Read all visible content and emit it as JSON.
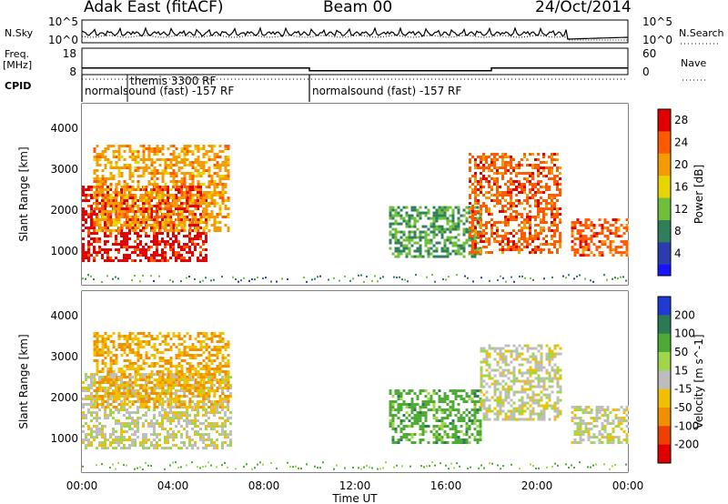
{
  "header": {
    "radar": "Adak East (fitACF)",
    "beam": "Beam 00",
    "date": "24/Oct/2014"
  },
  "left_labels": {
    "nsky": "N.Sky",
    "freq": "Freq.",
    "freq_unit": "[MHz]",
    "cpid": "CPID"
  },
  "right_labels": {
    "nsearch": "N.Search",
    "nave": "Nave"
  },
  "chart_data": [
    {
      "id": "noise",
      "type": "line",
      "left_axis": {
        "label": "N.Sky",
        "ticks": [
          "10^5",
          "10^0"
        ]
      },
      "right_axis": {
        "label": "N.Search",
        "ticks": [
          "10^5",
          "10^0"
        ]
      },
      "series": [
        {
          "name": "N.Sky",
          "style": "solid"
        },
        {
          "name": "N.Search",
          "style": "dotted"
        }
      ]
    },
    {
      "id": "frequency",
      "type": "line",
      "left_axis": {
        "label": "Freq. [MHz]",
        "ticks": [
          "18",
          "8"
        ],
        "range": [
          8,
          18
        ]
      },
      "right_axis": {
        "label": "Nave",
        "ticks": [
          "60",
          "0"
        ],
        "range": [
          0,
          60
        ]
      },
      "series": [
        {
          "name": "Freq.",
          "style": "solid",
          "x": [
            "00:00",
            "10:00",
            "10:00",
            "18:00",
            "18:00",
            "24:00"
          ],
          "values": [
            10.5,
            10.5,
            9.5,
            9.5,
            10.5,
            10.5
          ]
        },
        {
          "name": "Nave",
          "style": "dotted",
          "x": [
            "00:00",
            "24:00"
          ],
          "values": [
            8,
            8
          ]
        }
      ]
    },
    {
      "id": "cpid",
      "type": "table",
      "segments": [
        {
          "start": "00:00",
          "end": "10:00",
          "label": "normalsound (fast) -157 RF"
        },
        {
          "start": "10:00",
          "end": "24:00",
          "label": "normalsound (fast) -157 RF"
        }
      ],
      "annotation": {
        "time": "02:00",
        "label": "themis 3300 RF"
      }
    },
    {
      "id": "power",
      "type": "heatmap",
      "ylabel": "Slant Range [km]",
      "ylim": [
        180,
        4600
      ],
      "yticks": [
        1000,
        2000,
        3000,
        4000
      ],
      "colorbar": {
        "label": "Power [dB]",
        "ticks": [
          4,
          8,
          12,
          16,
          20,
          24,
          28
        ],
        "range": [
          0,
          30
        ]
      },
      "regions": [
        {
          "x": [
            "00:00",
            "05:30"
          ],
          "slant_range_km": [
            800,
            2600
          ],
          "value": 28
        },
        {
          "x": [
            "00:30",
            "06:30"
          ],
          "slant_range_km": [
            1500,
            3600
          ],
          "value": 20
        },
        {
          "x": [
            "13:30",
            "17:30"
          ],
          "slant_range_km": [
            900,
            2100
          ],
          "value": 10
        },
        {
          "x": [
            "17:00",
            "21:00"
          ],
          "slant_range_km": [
            1000,
            3400
          ],
          "value": 24
        },
        {
          "x": [
            "21:30",
            "24:00"
          ],
          "slant_range_km": [
            900,
            1800
          ],
          "value": 24
        }
      ]
    },
    {
      "id": "velocity",
      "type": "heatmap",
      "ylabel": "Slant Range [km]",
      "ylim": [
        180,
        4600
      ],
      "yticks": [
        1000,
        2000,
        3000,
        4000
      ],
      "colorbar": {
        "label": "Velocity [m s^-1]",
        "ticks": [
          200,
          100,
          50,
          15,
          -15,
          -50,
          -100,
          -200
        ]
      },
      "regions": [
        {
          "x": [
            "00:00",
            "06:30"
          ],
          "slant_range_km": [
            800,
            2600
          ],
          "value": 0
        },
        {
          "x": [
            "00:30",
            "06:30"
          ],
          "slant_range_km": [
            1800,
            3600
          ],
          "value": -50
        },
        {
          "x": [
            "13:30",
            "17:30"
          ],
          "slant_range_km": [
            900,
            2200
          ],
          "value": 50
        },
        {
          "x": [
            "17:30",
            "21:00"
          ],
          "slant_range_km": [
            1500,
            3300
          ],
          "value": 0
        },
        {
          "x": [
            "21:30",
            "24:00"
          ],
          "slant_range_km": [
            900,
            1800
          ],
          "value": 0
        }
      ]
    }
  ],
  "x_axis": {
    "label": "Time UT",
    "ticks": [
      "00:00",
      "04:00",
      "08:00",
      "12:00",
      "16:00",
      "20:00",
      "00:00"
    ]
  }
}
